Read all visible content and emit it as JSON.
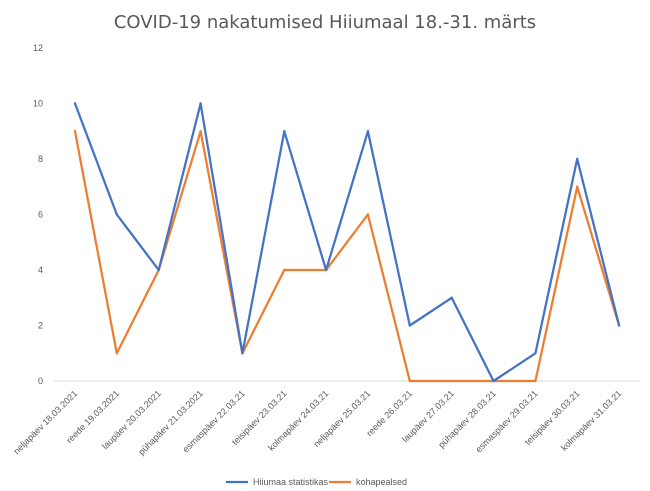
{
  "chart_data": {
    "type": "line",
    "title": "COVID-19 nakatumised Hiiumaal 18.-31. märts",
    "categories": [
      "neljapäev 18.03.2021",
      "reede 19.03.2021",
      "laupäev 20.03.2021",
      "pühapäev 21.03.2021",
      "esmaspäev 22.03.21",
      "teisipäev 23.03.21",
      "kolmapäev 24.03.21",
      "neljapäev 25.03.21",
      "reede 26.03.21",
      "laupäev 27.03.21",
      "pühapäev 28.03.21",
      "esmaspäev 29.03.21",
      "teisipäev 30.03.21",
      "kolmapäev 31.03.21"
    ],
    "series": [
      {
        "name": "Hiiumaa statistikas",
        "color": "#4472C4",
        "values": [
          10,
          6,
          4,
          10,
          1,
          9,
          4,
          9,
          2,
          3,
          0,
          1,
          8,
          2
        ]
      },
      {
        "name": "kohapealsed",
        "color": "#ED7D31",
        "values": [
          9,
          1,
          4,
          9,
          1,
          4,
          4,
          6,
          0,
          0,
          0,
          0,
          7,
          2
        ]
      }
    ],
    "ylim": [
      0,
      12
    ],
    "yticks": [
      "0",
      "2",
      "4",
      "6",
      "8",
      "10",
      "12"
    ],
    "grid": false,
    "legend": "bottom"
  }
}
